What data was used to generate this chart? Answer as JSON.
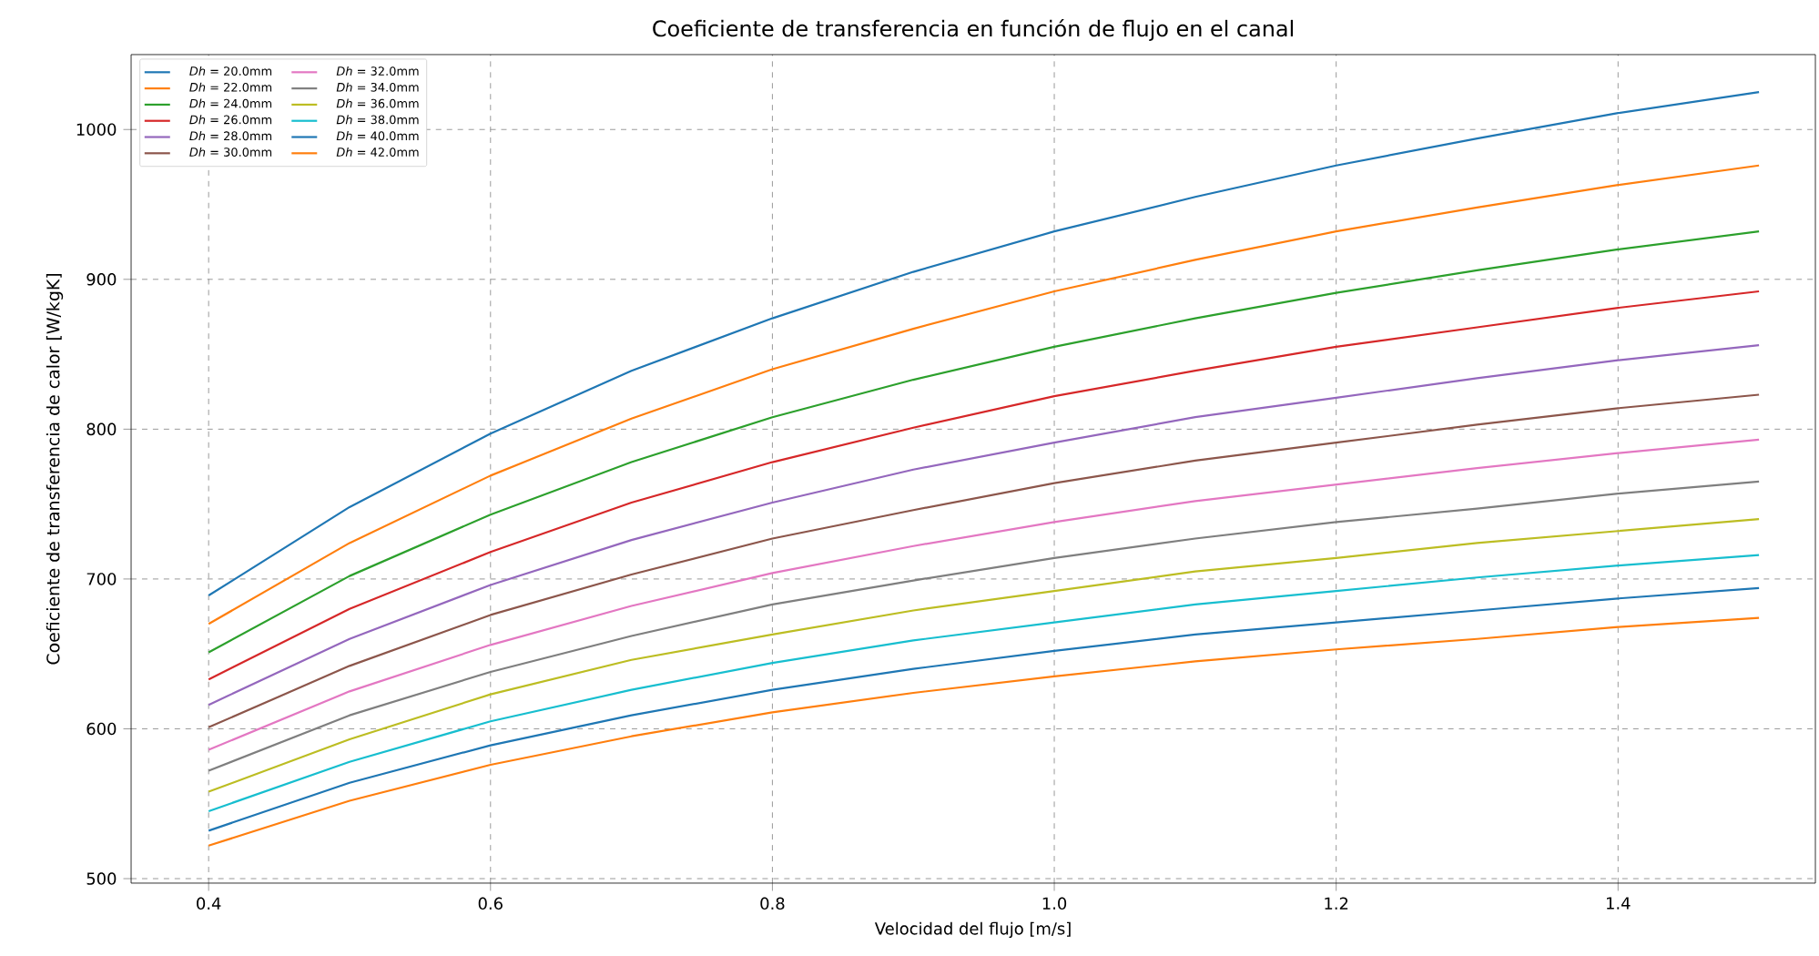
{
  "chart_data": {
    "type": "line",
    "title": "Coeficiente de transferencia en función de flujo en el canal",
    "xlabel": "Velocidad del flujo [m/s]",
    "ylabel": "Coeficiente de transferencia de calor [W/kgK]",
    "x": [
      0.4,
      0.5,
      0.6,
      0.7,
      0.8,
      0.9,
      1.0,
      1.1,
      1.2,
      1.3,
      1.4,
      1.5
    ],
    "xlim": [
      0.345,
      1.54
    ],
    "ylim": [
      497,
      1050
    ],
    "xticks": [
      0.4,
      0.6,
      0.8,
      {
        "value": 1.0,
        "label": "1.0"
      },
      1.2,
      1.4
    ],
    "yticks": [
      500,
      600,
      700,
      800,
      900,
      1000
    ],
    "grid": true,
    "legend": "top left",
    "line_style": "solid",
    "marker": "none",
    "series": [
      {
        "name": "*Dh* = 20.0mm",
        "color": "#1f77b4",
        "values": [
          689,
          748,
          797,
          839,
          874,
          905,
          932,
          955,
          976,
          994,
          1011,
          1025
        ]
      },
      {
        "name": "*Dh* = 22.0mm",
        "color": "#ff7f0e",
        "values": [
          670,
          724,
          769,
          807,
          840,
          867,
          892,
          913,
          932,
          948,
          963,
          976
        ]
      },
      {
        "name": "*Dh* = 24.0mm",
        "color": "#2ca02c",
        "values": [
          651,
          702,
          743,
          778,
          808,
          833,
          855,
          874,
          891,
          906,
          920,
          932
        ]
      },
      {
        "name": "*Dh* = 26.0mm",
        "color": "#d62728",
        "values": [
          633,
          680,
          718,
          751,
          778,
          801,
          822,
          839,
          855,
          868,
          881,
          892
        ]
      },
      {
        "name": "*Dh* = 28.0mm",
        "color": "#9467bd",
        "values": [
          616,
          660,
          696,
          726,
          751,
          773,
          791,
          808,
          821,
          834,
          846,
          856
        ]
      },
      {
        "name": "*Dh* = 30.0mm",
        "color": "#8c564b",
        "values": [
          601,
          642,
          676,
          703,
          727,
          746,
          764,
          779,
          791,
          803,
          814,
          823
        ]
      },
      {
        "name": "*Dh* = 32.0mm",
        "color": "#e377c2",
        "values": [
          586,
          625,
          656,
          682,
          704,
          722,
          738,
          752,
          763,
          774,
          784,
          793
        ]
      },
      {
        "name": "*Dh* = 34.0mm",
        "color": "#7f7f7f",
        "values": [
          572,
          609,
          638,
          662,
          683,
          699,
          714,
          727,
          738,
          747,
          757,
          765
        ]
      },
      {
        "name": "*Dh* = 36.0mm",
        "color": "#bcbd22",
        "values": [
          558,
          593,
          623,
          646,
          663,
          679,
          692,
          705,
          714,
          724,
          732,
          740
        ]
      },
      {
        "name": "*Dh* = 38.0mm",
        "color": "#17becf",
        "values": [
          545,
          578,
          605,
          626,
          644,
          659,
          671,
          683,
          692,
          701,
          709,
          716
        ]
      },
      {
        "name": "*Dh* = 40.0mm",
        "color": "#1f77b4",
        "values": [
          532,
          564,
          589,
          609,
          626,
          640,
          652,
          663,
          671,
          679,
          687,
          694
        ]
      },
      {
        "name": "*Dh* = 42.0mm",
        "color": "#ff7f0e",
        "values": [
          522,
          552,
          576,
          595,
          611,
          624,
          635,
          645,
          653,
          660,
          668,
          674
        ]
      }
    ]
  }
}
